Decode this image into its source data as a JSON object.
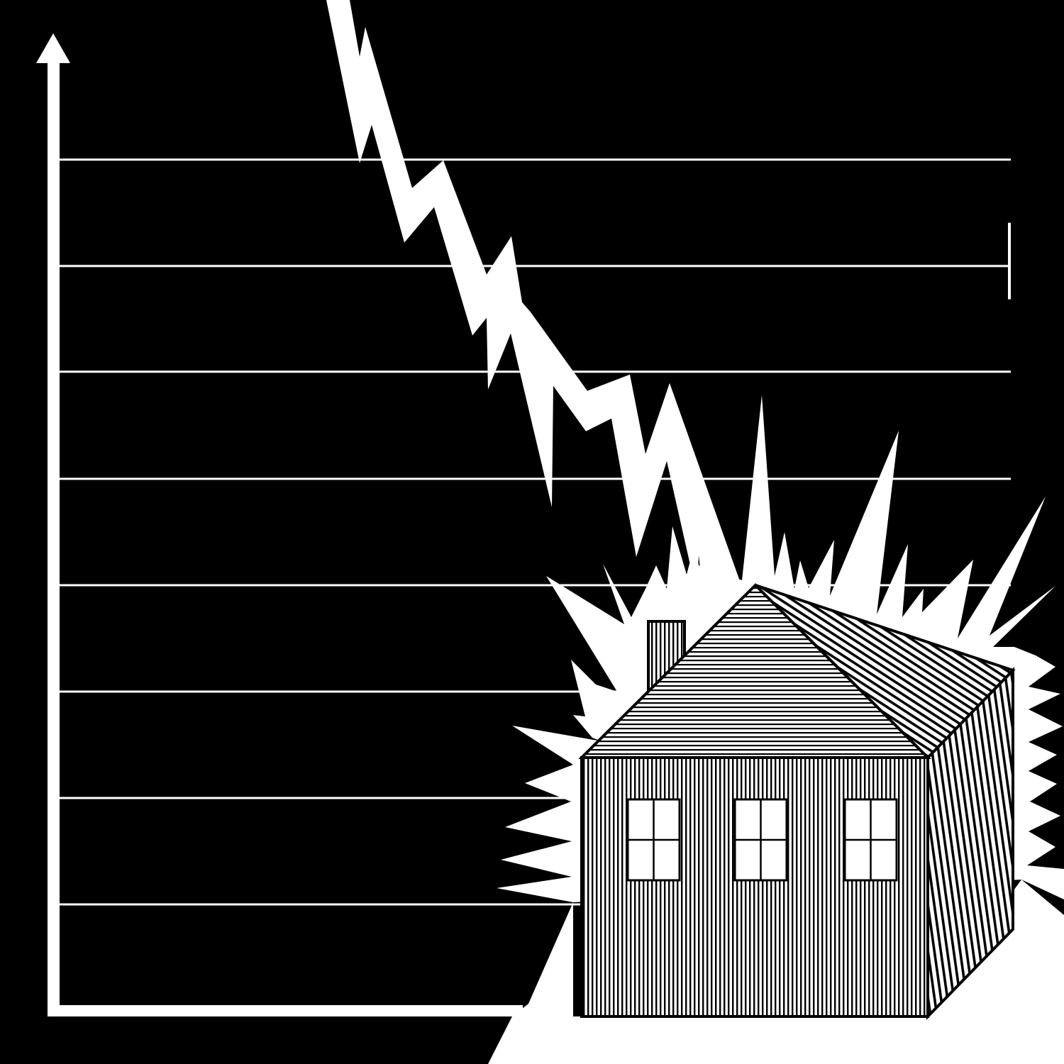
{
  "colors": {
    "background": "#000000",
    "foreground": "#ffffff"
  },
  "icons": {
    "axis": "up-arrow-icon",
    "crash": "lightning-bolt-icon",
    "impact": "explosion-burst-icon",
    "subject": "house-icon"
  }
}
